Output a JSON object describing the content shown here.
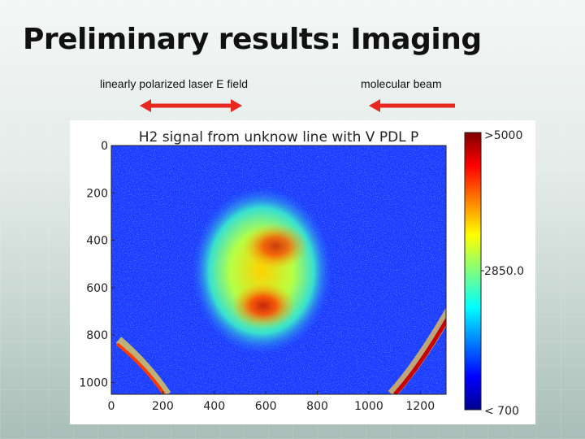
{
  "slide": {
    "title": "Preliminary results: Imaging",
    "labels": {
      "laser_field": "linearly polarized laser E field",
      "molecular_beam": "molecular beam"
    },
    "arrow_color": "#e8281e"
  },
  "chart_data": {
    "type": "heatmap",
    "title": "H2 signal from unknow line with V PDL P",
    "x_ticks": [
      "0",
      "200",
      "400",
      "600",
      "800",
      "1000",
      "1200"
    ],
    "y_ticks": [
      "0",
      "200",
      "400",
      "600",
      "800",
      "1000"
    ],
    "xlim": [
      0,
      1300
    ],
    "ylim": [
      1050,
      0
    ],
    "colorbar": {
      "labels": [
        ">5000",
        "2850.0",
        "< 700"
      ],
      "min": 700,
      "max": 5000,
      "colormap": "jet"
    }
  }
}
